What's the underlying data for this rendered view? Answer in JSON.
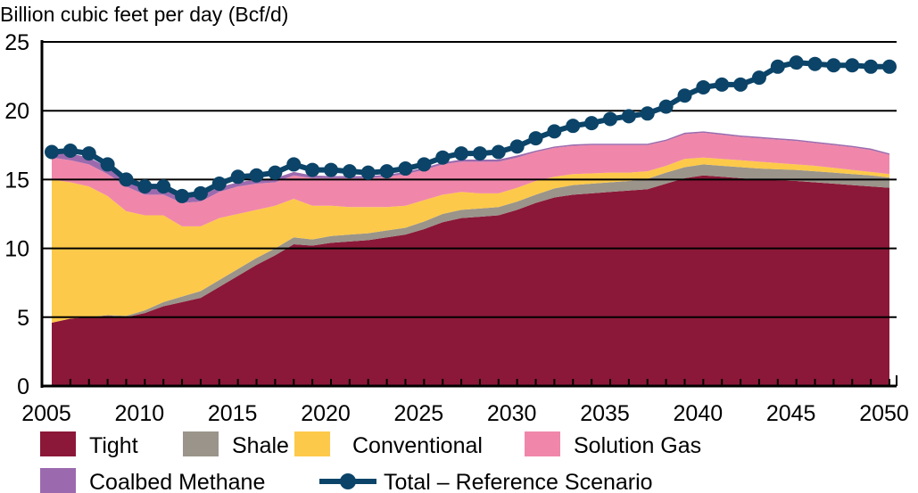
{
  "chart_data": {
    "type": "area",
    "stacked": true,
    "title": "",
    "ylabel": "Billion cubic feet per day (Bcf/d)",
    "xlabel": "",
    "xlim": [
      2005,
      2050
    ],
    "ylim": [
      0,
      25
    ],
    "yticks": [
      "0",
      "5",
      "10",
      "15",
      "20",
      "25"
    ],
    "xticks": [
      "2005",
      "2010",
      "2015",
      "2020",
      "2025",
      "2030",
      "2035",
      "2040",
      "2045",
      "2050"
    ],
    "grid": "horizontal",
    "legend_placement": "bottom",
    "x": [
      2005,
      2006,
      2007,
      2008,
      2009,
      2010,
      2011,
      2012,
      2013,
      2014,
      2015,
      2016,
      2017,
      2018,
      2019,
      2020,
      2021,
      2022,
      2023,
      2024,
      2025,
      2026,
      2027,
      2028,
      2029,
      2030,
      2031,
      2032,
      2033,
      2034,
      2035,
      2036,
      2037,
      2038,
      2039,
      2040,
      2041,
      2042,
      2043,
      2044,
      2045,
      2046,
      2047,
      2048,
      2049,
      2050
    ],
    "series": [
      {
        "name": "Tight",
        "color": "#8B1838",
        "values": [
          4.6,
          4.9,
          5.0,
          5.1,
          5.0,
          5.3,
          5.8,
          6.1,
          6.4,
          7.2,
          8.0,
          8.8,
          9.5,
          10.3,
          10.2,
          10.4,
          10.5,
          10.6,
          10.8,
          11.0,
          11.4,
          11.9,
          12.2,
          12.3,
          12.4,
          12.8,
          13.3,
          13.7,
          13.9,
          14.0,
          14.1,
          14.2,
          14.3,
          14.7,
          15.1,
          15.3,
          15.2,
          15.1,
          15.0,
          14.95,
          14.9,
          14.8,
          14.7,
          14.6,
          14.5,
          14.4
        ]
      },
      {
        "name": "Shale",
        "color": "#9A948A",
        "values": [
          0.0,
          0.0,
          0.0,
          0.05,
          0.1,
          0.2,
          0.3,
          0.4,
          0.5,
          0.5,
          0.5,
          0.5,
          0.5,
          0.5,
          0.45,
          0.5,
          0.5,
          0.5,
          0.5,
          0.5,
          0.55,
          0.6,
          0.6,
          0.6,
          0.6,
          0.6,
          0.6,
          0.65,
          0.7,
          0.7,
          0.7,
          0.7,
          0.75,
          0.8,
          0.8,
          0.8,
          0.8,
          0.8,
          0.8,
          0.8,
          0.8,
          0.8,
          0.8,
          0.8,
          0.8,
          0.75
        ]
      },
      {
        "name": "Conventional",
        "color": "#FDC94A",
        "values": [
          10.4,
          9.9,
          9.5,
          8.65,
          7.6,
          6.9,
          6.3,
          5.1,
          4.7,
          4.5,
          4.0,
          3.5,
          3.1,
          2.8,
          2.45,
          2.2,
          2.0,
          1.9,
          1.7,
          1.6,
          1.55,
          1.4,
          1.3,
          1.1,
          1.0,
          1.0,
          1.0,
          0.85,
          0.8,
          0.75,
          0.7,
          0.6,
          0.55,
          0.5,
          0.6,
          0.5,
          0.5,
          0.5,
          0.5,
          0.45,
          0.4,
          0.4,
          0.35,
          0.3,
          0.25,
          0.25
        ]
      },
      {
        "name": "Solution Gas",
        "color": "#F087AA",
        "values": [
          1.6,
          1.6,
          1.6,
          1.6,
          1.8,
          1.5,
          1.5,
          1.7,
          1.8,
          1.9,
          2.0,
          1.9,
          1.7,
          1.7,
          2.0,
          2.0,
          2.1,
          2.1,
          2.2,
          2.3,
          2.2,
          2.2,
          2.2,
          2.3,
          2.3,
          2.2,
          2.1,
          2.1,
          2.05,
          2.05,
          2.0,
          2.0,
          1.9,
          1.8,
          1.8,
          1.8,
          1.75,
          1.7,
          1.7,
          1.7,
          1.7,
          1.65,
          1.65,
          1.65,
          1.6,
          1.4
        ]
      },
      {
        "name": "Coalbed Methane",
        "color": "#9B6AAE",
        "values": [
          0.4,
          0.5,
          0.5,
          0.5,
          0.5,
          0.5,
          0.5,
          0.4,
          0.4,
          0.35,
          0.3,
          0.3,
          0.3,
          0.25,
          0.2,
          0.15,
          0.15,
          0.15,
          0.15,
          0.15,
          0.15,
          0.15,
          0.15,
          0.15,
          0.15,
          0.15,
          0.1,
          0.1,
          0.1,
          0.1,
          0.1,
          0.1,
          0.1,
          0.1,
          0.1,
          0.1,
          0.1,
          0.1,
          0.1,
          0.1,
          0.1,
          0.1,
          0.1,
          0.1,
          0.1,
          0.1
        ]
      }
    ],
    "line_series": {
      "name": "Total – Reference Scenario",
      "color": "#0B4468",
      "values": [
        17.0,
        17.1,
        16.9,
        16.1,
        15.0,
        14.5,
        14.5,
        13.8,
        14.0,
        14.7,
        15.2,
        15.3,
        15.5,
        16.1,
        15.7,
        15.7,
        15.6,
        15.5,
        15.6,
        15.8,
        16.1,
        16.6,
        16.9,
        16.9,
        17.0,
        17.4,
        18.0,
        18.5,
        18.9,
        19.1,
        19.4,
        19.6,
        19.8,
        20.3,
        21.1,
        21.7,
        21.9,
        21.9,
        22.4,
        23.2,
        23.5,
        23.4,
        23.3,
        23.3,
        23.2,
        23.2
      ]
    },
    "legend": [
      "Tight",
      "Shale",
      "Conventional",
      "Solution Gas",
      "Coalbed Methane",
      "Total – Reference Scenario"
    ]
  }
}
